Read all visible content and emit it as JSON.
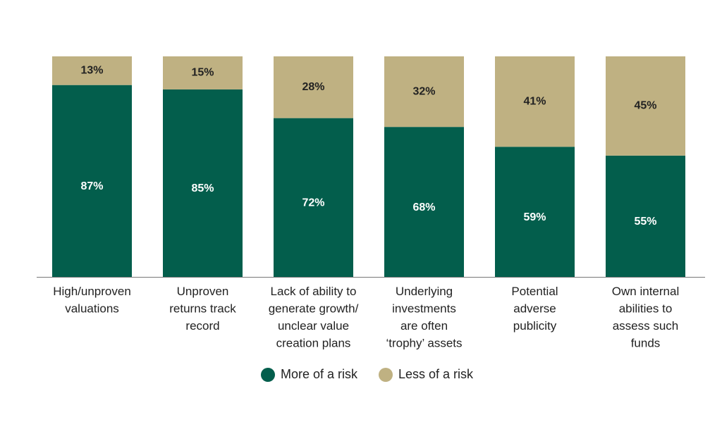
{
  "chart_data": {
    "type": "stacked_bar",
    "categories": [
      [
        "High/unproven",
        "valuations"
      ],
      [
        "Unproven",
        "returns track",
        "record"
      ],
      [
        "Lack of ability to",
        "generate growth/",
        "unclear value",
        "creation plans"
      ],
      [
        "Underlying",
        "investments",
        "are often",
        "‘trophy’ assets"
      ],
      [
        "Potential",
        "adverse",
        "publicity"
      ],
      [
        "Own internal",
        "abilities to",
        "assess such",
        "funds"
      ]
    ],
    "series": [
      {
        "name": "More of a risk",
        "color": "#035e4c",
        "label_color": "#ffffff",
        "values": [
          87,
          85,
          72,
          68,
          59,
          55
        ],
        "value_labels": [
          "87%",
          "85%",
          "72%",
          "68%",
          "59%",
          "55%"
        ]
      },
      {
        "name": "Less of a risk",
        "color": "#bfb182",
        "label_color": "#222222",
        "values": [
          13,
          15,
          28,
          32,
          41,
          45
        ],
        "value_labels": [
          "13%",
          "15%",
          "28%",
          "32%",
          "41%",
          "45%"
        ]
      }
    ],
    "ylim": [
      0,
      100
    ],
    "legend": "bottom"
  }
}
